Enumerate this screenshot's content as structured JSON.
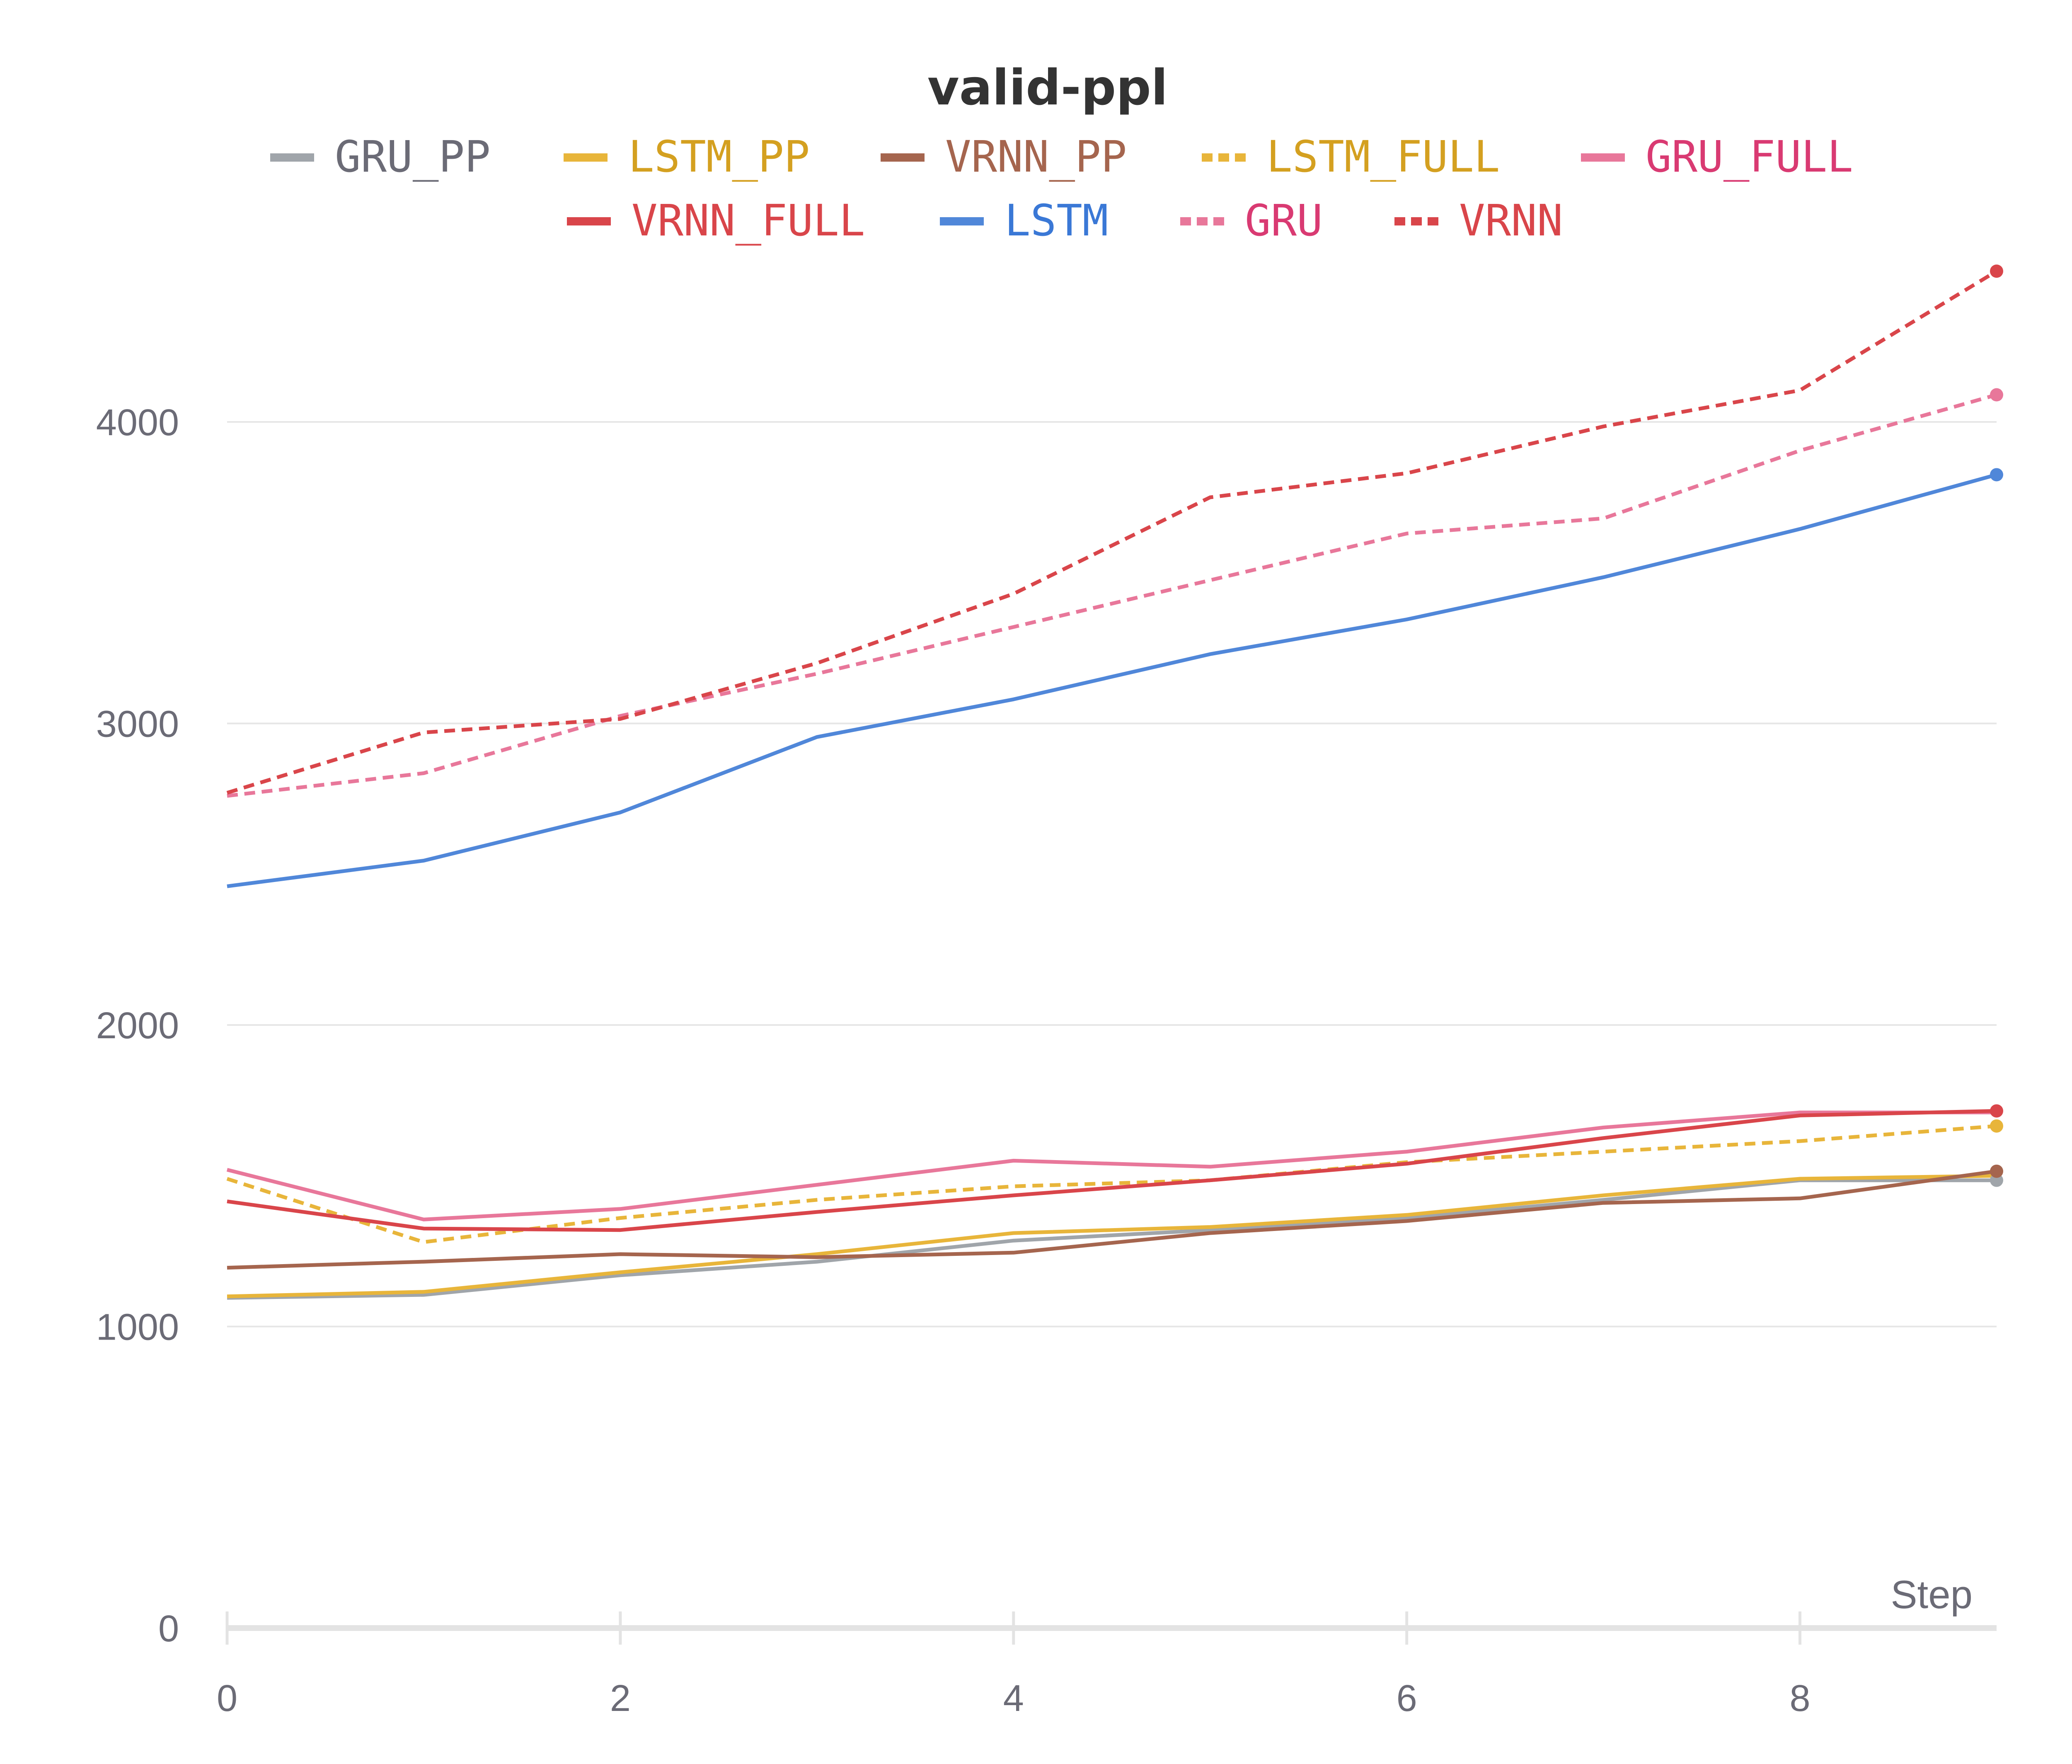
{
  "chart_data": {
    "type": "line",
    "title": "valid-ppl",
    "xlabel": "Step",
    "ylabel": "",
    "xlim": [
      0,
      9
    ],
    "ylim": [
      0,
      4600
    ],
    "x_ticks": [
      0,
      2,
      4,
      6,
      8
    ],
    "y_ticks": [
      0,
      1000,
      2000,
      3000,
      4000
    ],
    "x": [
      0,
      1,
      2,
      3,
      4,
      5,
      6,
      7,
      8,
      9
    ],
    "grid": "horizontal",
    "legend_position": "top",
    "series": [
      {
        "name": "GRU_PP",
        "color": "#a0a5aa",
        "text_color": "#6b6b76",
        "dashed": false,
        "end_marker": true,
        "values": [
          1095,
          1105,
          1170,
          1215,
          1285,
          1320,
          1360,
          1420,
          1485,
          1485
        ]
      },
      {
        "name": "LSTM_PP",
        "color": "#e8b53a",
        "text_color": "#d4a020",
        "dashed": false,
        "end_marker": false,
        "values": [
          1100,
          1115,
          1180,
          1240,
          1310,
          1330,
          1370,
          1435,
          1490,
          1500
        ]
      },
      {
        "name": "VRNN_PP",
        "color": "#a5654e",
        "text_color": "#a5654e",
        "dashed": false,
        "end_marker": true,
        "values": [
          1195,
          1215,
          1240,
          1230,
          1245,
          1310,
          1350,
          1410,
          1425,
          1515
        ]
      },
      {
        "name": "LSTM_FULL",
        "color": "#e8b53a",
        "text_color": "#d4a020",
        "dashed": true,
        "end_marker": true,
        "values": [
          1490,
          1280,
          1360,
          1420,
          1465,
          1485,
          1545,
          1580,
          1615,
          1665
        ]
      },
      {
        "name": "GRU_FULL",
        "color": "#e8779a",
        "text_color": "#d93a72",
        "dashed": false,
        "end_marker": false,
        "values": [
          1520,
          1355,
          1390,
          1470,
          1550,
          1530,
          1580,
          1660,
          1710,
          1710
        ]
      },
      {
        "name": "VRNN_FULL",
        "color": "#d9454a",
        "text_color": "#d9454a",
        "dashed": false,
        "end_marker": true,
        "values": [
          1415,
          1325,
          1320,
          1380,
          1435,
          1485,
          1540,
          1625,
          1700,
          1715
        ]
      },
      {
        "name": "LSTM",
        "color": "#5087d9",
        "text_color": "#3a78d6",
        "dashed": false,
        "end_marker": true,
        "values": [
          2460,
          2545,
          2705,
          2955,
          3080,
          3230,
          3345,
          3485,
          3645,
          3825
        ]
      },
      {
        "name": "GRU",
        "color": "#e8779a",
        "text_color": "#d93a72",
        "dashed": true,
        "end_marker": true,
        "values": [
          2760,
          2835,
          3025,
          3165,
          3320,
          3475,
          3630,
          3680,
          3905,
          4090
        ]
      },
      {
        "name": "VRNN",
        "color": "#d9454a",
        "text_color": "#d9454a",
        "dashed": true,
        "end_marker": true,
        "values": [
          2770,
          2970,
          3015,
          3200,
          3430,
          3750,
          3830,
          3985,
          4105,
          4500
        ]
      }
    ]
  }
}
